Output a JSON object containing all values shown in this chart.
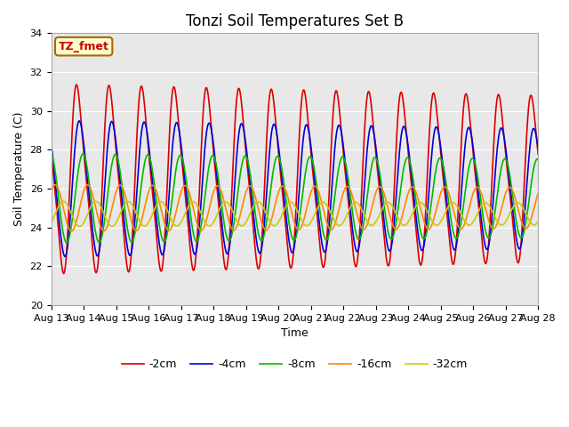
{
  "title": "Tonzi Soil Temperatures Set B",
  "xlabel": "Time",
  "ylabel": "Soil Temperature (C)",
  "ylim": [
    20,
    34
  ],
  "annotation": "TZ_fmet",
  "bg_color": "#ffffff",
  "plot_bg_color": "#e8e8e8",
  "grid_color": "#ffffff",
  "series": [
    {
      "label": "-2cm",
      "color": "#dd0000",
      "amp": 5.5,
      "phase_hr": 14.0,
      "mean": 26.5,
      "skew": 0.6
    },
    {
      "label": "-4cm",
      "color": "#0000dd",
      "amp": 3.8,
      "phase_hr": 15.5,
      "mean": 26.0,
      "skew": 0.3
    },
    {
      "label": "-8cm",
      "color": "#00bb00",
      "amp": 2.3,
      "phase_hr": 17.5,
      "mean": 25.5,
      "skew": 0.0
    },
    {
      "label": "-16cm",
      "color": "#ff8800",
      "amp": 1.2,
      "phase_hr": 21.0,
      "mean": 25.0,
      "skew": 0.0
    },
    {
      "label": "-32cm",
      "color": "#cccc00",
      "amp": 0.65,
      "phase_hr": 27.0,
      "mean": 24.7,
      "skew": 0.0
    }
  ],
  "tick_labels": [
    "Aug 13",
    "Aug 14",
    "Aug 15",
    "Aug 16",
    "Aug 17",
    "Aug 18",
    "Aug 19",
    "Aug 20",
    "Aug 21",
    "Aug 22",
    "Aug 23",
    "Aug 24",
    "Aug 25",
    "Aug 26",
    "Aug 27",
    "Aug 28"
  ],
  "title_fontsize": 12,
  "axis_fontsize": 9,
  "tick_fontsize": 8,
  "legend_fontsize": 9
}
